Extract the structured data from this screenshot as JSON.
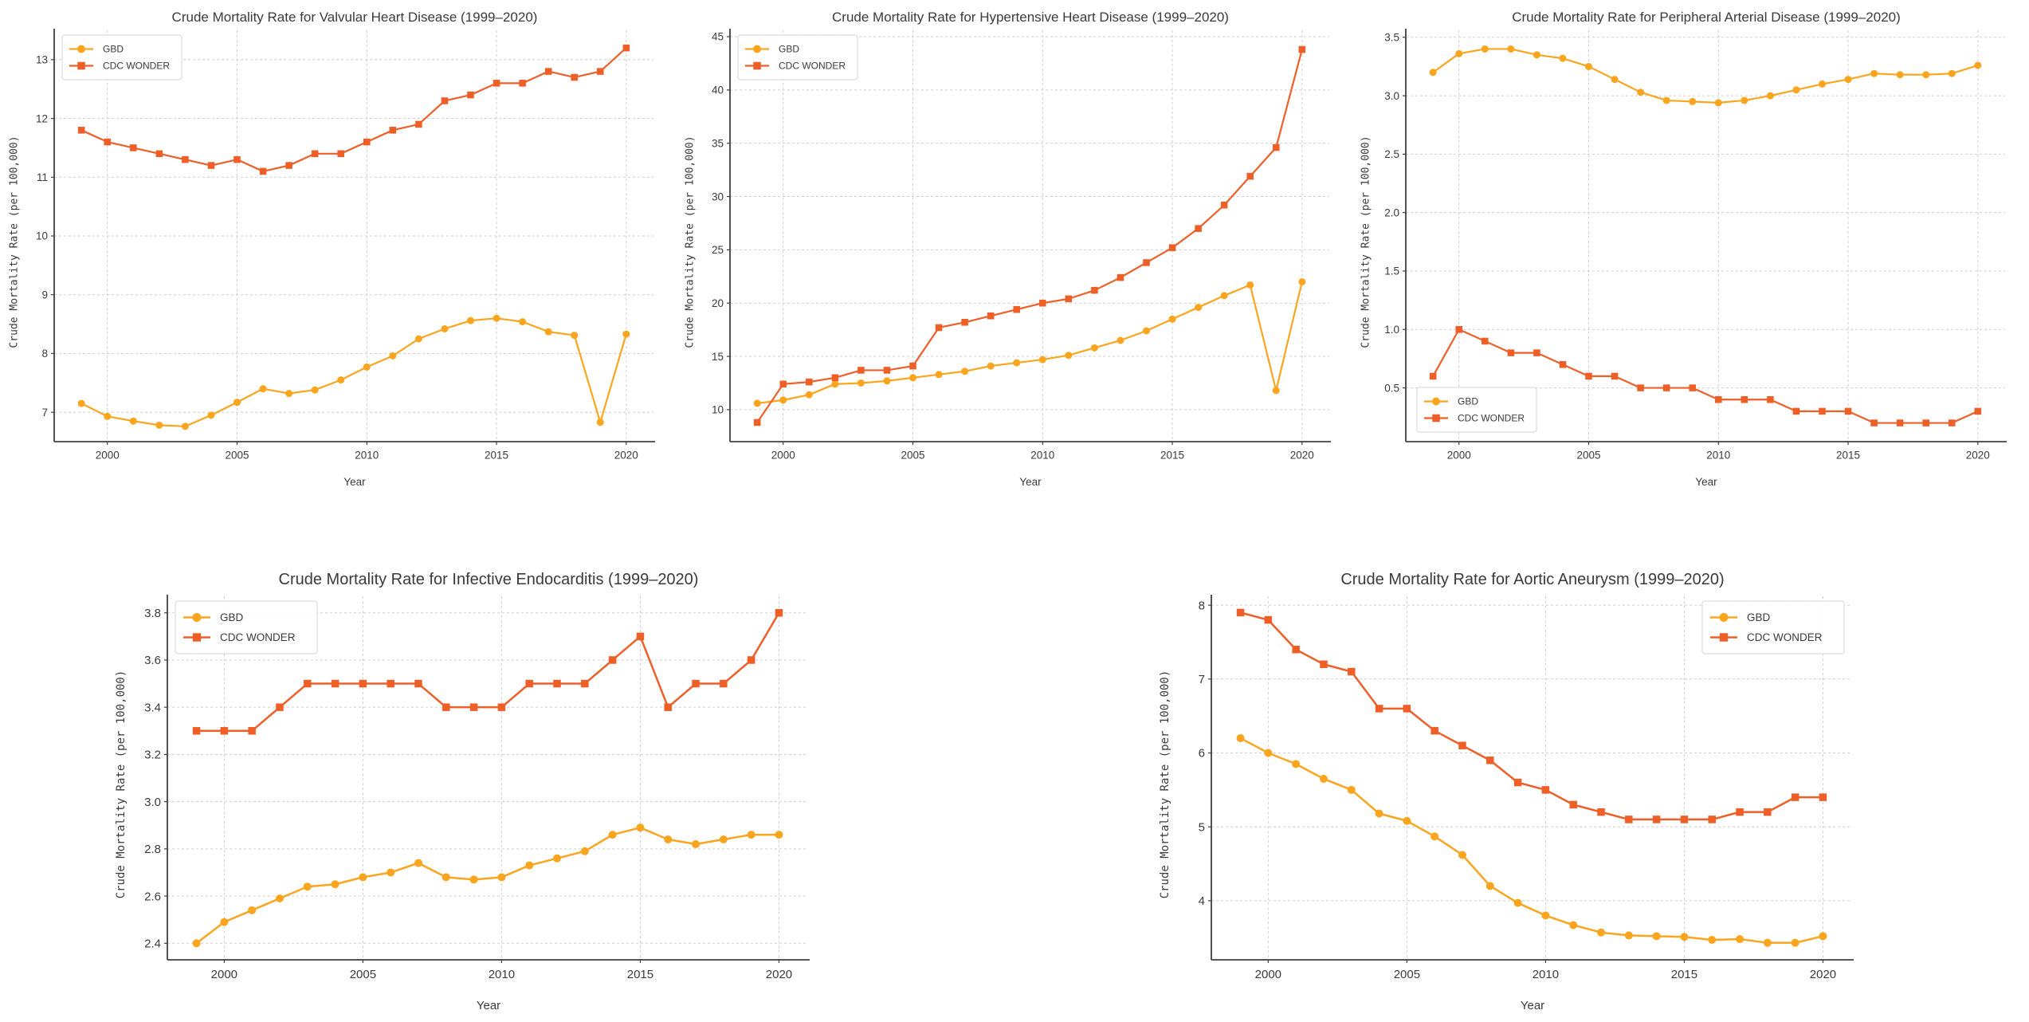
{
  "figure": {
    "background": "#ffffff",
    "text_color": "#3a3a3a",
    "grid_color": "#cfcfcf",
    "spine_color": "#3f3f3f",
    "legend_border_color": "#d5d5d5",
    "gbd_color": "#FBA51F",
    "cdc_color": "#EE5F28"
  },
  "chart_data": [
    {
      "id": "valvular-heart-disease",
      "type": "line",
      "title": "Crude Mortality Rate for Valvular Heart Disease (1999–2020)",
      "xlabel": "Year",
      "ylabel": "Crude Mortality Rate (per 100,000)",
      "grid": true,
      "legend_position": "top-left",
      "x": [
        1999,
        2000,
        2001,
        2002,
        2003,
        2004,
        2005,
        2006,
        2007,
        2008,
        2009,
        2010,
        2011,
        2012,
        2013,
        2014,
        2015,
        2016,
        2017,
        2018,
        2019,
        2020
      ],
      "xlim": [
        1997.95,
        2021.05
      ],
      "ylim": [
        6.5,
        13.5
      ],
      "xtick_values": [
        2000,
        2005,
        2010,
        2015,
        2020
      ],
      "xtick_labels": [
        "2000",
        "2005",
        "2010",
        "2015",
        "2020"
      ],
      "ytick_values": [
        7,
        8,
        9,
        10,
        11,
        12,
        13
      ],
      "ytick_labels": [
        "7",
        "8",
        "9",
        "10",
        "11",
        "12",
        "13"
      ],
      "series": [
        {
          "name": "GBD",
          "color": "#FBA51F",
          "marker": "circle",
          "values": [
            7.15,
            6.93,
            6.85,
            6.78,
            6.76,
            6.95,
            7.17,
            7.4,
            7.32,
            7.38,
            7.55,
            7.77,
            7.96,
            8.25,
            8.42,
            8.56,
            8.6,
            8.54,
            8.37,
            8.31,
            6.83,
            8.33
          ]
        },
        {
          "name": "CDC WONDER",
          "color": "#EE5F28",
          "marker": "square",
          "values": [
            11.8,
            11.6,
            11.5,
            11.4,
            11.3,
            11.2,
            11.3,
            11.1,
            11.2,
            11.4,
            11.4,
            11.6,
            11.8,
            11.9,
            12.3,
            12.4,
            12.6,
            12.6,
            12.8,
            12.7,
            12.8,
            13.2
          ]
        }
      ]
    },
    {
      "id": "hypertensive-heart-disease",
      "type": "line",
      "title": "Crude Mortality Rate for Hypertensive Heart Disease (1999–2020)",
      "xlabel": "Year",
      "ylabel": "Crude Mortality Rate (per 100,000)",
      "grid": true,
      "legend_position": "top-left",
      "x": [
        1999,
        2000,
        2001,
        2002,
        2003,
        2004,
        2005,
        2006,
        2007,
        2008,
        2009,
        2010,
        2011,
        2012,
        2013,
        2014,
        2015,
        2016,
        2017,
        2018,
        2019,
        2020
      ],
      "xlim": [
        1997.95,
        2021.05
      ],
      "ylim": [
        7.0,
        45.6
      ],
      "xtick_values": [
        2000,
        2005,
        2010,
        2015,
        2020
      ],
      "xtick_labels": [
        "2000",
        "2005",
        "2010",
        "2015",
        "2020"
      ],
      "ytick_values": [
        10,
        15,
        20,
        25,
        30,
        35,
        40,
        45
      ],
      "ytick_labels": [
        "10",
        "15",
        "20",
        "25",
        "30",
        "35",
        "40",
        "45"
      ],
      "series": [
        {
          "name": "GBD",
          "color": "#FBA51F",
          "marker": "circle",
          "values": [
            10.6,
            10.9,
            11.4,
            12.4,
            12.5,
            12.7,
            13.0,
            13.3,
            13.6,
            14.1,
            14.4,
            14.7,
            15.1,
            15.8,
            16.5,
            17.4,
            18.5,
            19.6,
            20.7,
            21.7,
            11.8,
            22.0
          ]
        },
        {
          "name": "CDC WONDER",
          "color": "#EE5F28",
          "marker": "square",
          "values": [
            8.8,
            12.4,
            12.6,
            13.0,
            13.7,
            13.7,
            14.1,
            17.7,
            18.2,
            18.8,
            19.4,
            20.0,
            20.4,
            21.2,
            22.4,
            23.8,
            25.2,
            27.0,
            29.2,
            31.9,
            34.6,
            43.8
          ]
        }
      ]
    },
    {
      "id": "peripheral-arterial-disease",
      "type": "line",
      "title": "Crude Mortality Rate for Peripheral Arterial Disease (1999–2020)",
      "xlabel": "Year",
      "ylabel": "Crude Mortality Rate (per 100,000)",
      "grid": true,
      "legend_position": "bottom-left",
      "x": [
        1999,
        2000,
        2001,
        2002,
        2003,
        2004,
        2005,
        2006,
        2007,
        2008,
        2009,
        2010,
        2011,
        2012,
        2013,
        2014,
        2015,
        2016,
        2017,
        2018,
        2019,
        2020
      ],
      "xlim": [
        1997.95,
        2021.05
      ],
      "ylim": [
        0.04,
        3.56
      ],
      "xtick_values": [
        2000,
        2005,
        2010,
        2015,
        2020
      ],
      "xtick_labels": [
        "2000",
        "2005",
        "2010",
        "2015",
        "2020"
      ],
      "ytick_values": [
        0.5,
        1.0,
        1.5,
        2.0,
        2.5,
        3.0,
        3.5
      ],
      "ytick_labels": [
        "0.5",
        "1.0",
        "1.5",
        "2.0",
        "2.5",
        "3.0",
        "3.5"
      ],
      "series": [
        {
          "name": "GBD",
          "color": "#FBA51F",
          "marker": "circle",
          "values": [
            3.2,
            3.36,
            3.4,
            3.4,
            3.35,
            3.32,
            3.25,
            3.14,
            3.03,
            2.96,
            2.95,
            2.94,
            2.96,
            3.0,
            3.05,
            3.1,
            3.14,
            3.19,
            3.18,
            3.18,
            3.19,
            3.26
          ]
        },
        {
          "name": "CDC WONDER",
          "color": "#EE5F28",
          "marker": "square",
          "values": [
            0.6,
            1.0,
            0.9,
            0.8,
            0.8,
            0.7,
            0.6,
            0.6,
            0.5,
            0.5,
            0.5,
            0.4,
            0.4,
            0.4,
            0.3,
            0.3,
            0.3,
            0.2,
            0.2,
            0.2,
            0.2,
            0.3
          ]
        }
      ]
    },
    {
      "id": "infective-endocarditis",
      "type": "line",
      "title": "Crude Mortality Rate for Infective Endocarditis (1999–2020)",
      "xlabel": "Year",
      "ylabel": "Crude Mortality Rate (per 100,000)",
      "grid": true,
      "legend_position": "top-left",
      "x": [
        1999,
        2000,
        2001,
        2002,
        2003,
        2004,
        2005,
        2006,
        2007,
        2008,
        2009,
        2010,
        2011,
        2012,
        2013,
        2014,
        2015,
        2016,
        2017,
        2018,
        2019,
        2020
      ],
      "xlim": [
        1997.95,
        2021.05
      ],
      "ylim": [
        2.33,
        3.87
      ],
      "xtick_values": [
        2000,
        2005,
        2010,
        2015,
        2020
      ],
      "xtick_labels": [
        "2000",
        "2005",
        "2010",
        "2015",
        "2020"
      ],
      "ytick_values": [
        2.4,
        2.6,
        2.8,
        3.0,
        3.2,
        3.4,
        3.6,
        3.8
      ],
      "ytick_labels": [
        "2.4",
        "2.6",
        "2.8",
        "3.0",
        "3.2",
        "3.4",
        "3.6",
        "3.8"
      ],
      "series": [
        {
          "name": "GBD",
          "color": "#FBA51F",
          "marker": "circle",
          "values": [
            2.4,
            2.49,
            2.54,
            2.59,
            2.64,
            2.65,
            2.68,
            2.7,
            2.74,
            2.68,
            2.67,
            2.68,
            2.73,
            2.76,
            2.79,
            2.86,
            2.89,
            2.84,
            2.82,
            2.84,
            2.86,
            2.86
          ]
        },
        {
          "name": "CDC WONDER",
          "color": "#EE5F28",
          "marker": "square",
          "values": [
            3.3,
            3.3,
            3.3,
            3.4,
            3.5,
            3.5,
            3.5,
            3.5,
            3.5,
            3.4,
            3.4,
            3.4,
            3.5,
            3.5,
            3.5,
            3.6,
            3.7,
            3.4,
            3.5,
            3.5,
            3.6,
            3.8
          ]
        }
      ]
    },
    {
      "id": "aortic-aneurysm",
      "type": "line",
      "title": "Crude Mortality Rate for Aortic Aneurysm (1999–2020)",
      "xlabel": "Year",
      "ylabel": "Crude Mortality Rate (per 100,000)",
      "grid": true,
      "legend_position": "top-right",
      "x": [
        1999,
        2000,
        2001,
        2002,
        2003,
        2004,
        2005,
        2006,
        2007,
        2008,
        2009,
        2010,
        2011,
        2012,
        2013,
        2014,
        2015,
        2016,
        2017,
        2018,
        2019,
        2020
      ],
      "xlim": [
        1997.95,
        2021.05
      ],
      "ylim": [
        3.2,
        8.12
      ],
      "xtick_values": [
        2000,
        2005,
        2010,
        2015,
        2020
      ],
      "xtick_labels": [
        "2000",
        "2005",
        "2010",
        "2015",
        "2020"
      ],
      "ytick_values": [
        4,
        5,
        6,
        7,
        8
      ],
      "ytick_labels": [
        "4",
        "5",
        "6",
        "7",
        "8"
      ],
      "series": [
        {
          "name": "GBD",
          "color": "#FBA51F",
          "marker": "circle",
          "values": [
            6.2,
            6.0,
            5.85,
            5.65,
            5.5,
            5.18,
            5.08,
            4.87,
            4.62,
            4.2,
            3.97,
            3.8,
            3.67,
            3.57,
            3.53,
            3.52,
            3.51,
            3.47,
            3.48,
            3.43,
            3.43,
            3.52
          ]
        },
        {
          "name": "CDC WONDER",
          "color": "#EE5F28",
          "marker": "square",
          "values": [
            7.9,
            7.8,
            7.4,
            7.2,
            7.1,
            6.6,
            6.6,
            6.3,
            6.1,
            5.9,
            5.6,
            5.5,
            5.3,
            5.2,
            5.1,
            5.1,
            5.1,
            5.1,
            5.2,
            5.2,
            5.4,
            5.4
          ]
        }
      ]
    }
  ]
}
